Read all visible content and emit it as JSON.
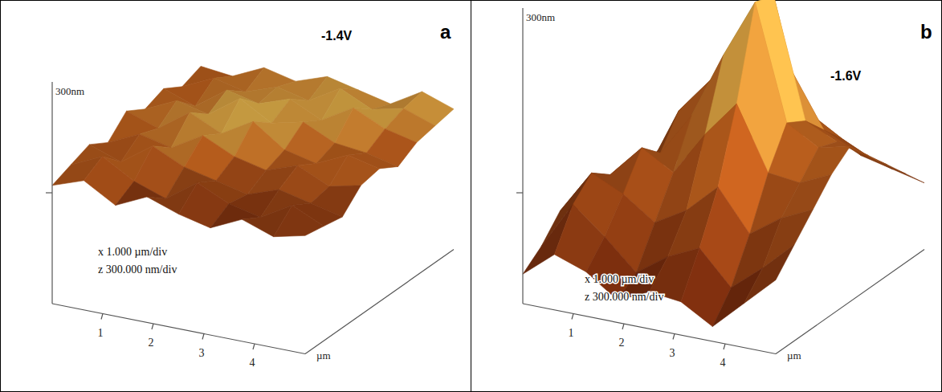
{
  "chart_data": [
    {
      "type": "surface",
      "panel": "a",
      "title": "-1.4V",
      "x": [
        0,
        0.625,
        1.25,
        1.875,
        2.5,
        3.125,
        3.75,
        4.375,
        5
      ],
      "y": [
        0,
        0.625,
        1.25,
        1.875,
        2.5,
        3.125,
        3.75,
        4.375,
        5
      ],
      "heights": [
        [
          320,
          350,
          300,
          340,
          310,
          290,
          330,
          300,
          320
        ],
        [
          340,
          380,
          330,
          300,
          360,
          320,
          300,
          350,
          310
        ],
        [
          360,
          330,
          390,
          350,
          330,
          310,
          340,
          320,
          300
        ],
        [
          330,
          370,
          350,
          400,
          360,
          340,
          370,
          330,
          350
        ],
        [
          380,
          350,
          410,
          370,
          420,
          360,
          340,
          380,
          360
        ],
        [
          350,
          390,
          370,
          430,
          380,
          400,
          360,
          350,
          330
        ],
        [
          370,
          340,
          400,
          380,
          410,
          370,
          420,
          380,
          360
        ],
        [
          340,
          380,
          360,
          390,
          370,
          420,
          380,
          400,
          370
        ],
        [
          360,
          350,
          390,
          370,
          400,
          380,
          360,
          410,
          380
        ]
      ],
      "xlim": [
        0,
        5
      ],
      "ylim": [
        0,
        5
      ],
      "zlim": [
        0,
        600
      ],
      "xticks": [
        1,
        2,
        3,
        4
      ],
      "zticks": [
        {
          "value": 300,
          "label": "300nm"
        }
      ],
      "x_label": "µm",
      "annotations": [
        "x 1.000 µm/div",
        "z 300.000 nm/div"
      ],
      "tick_labels": "x"
    },
    {
      "type": "surface",
      "panel": "b",
      "title": "-1.6V",
      "x": [
        0,
        0.625,
        1.25,
        1.875,
        2.5,
        3.125,
        3.75,
        4.375,
        5
      ],
      "y": [
        0,
        0.625,
        1.25,
        1.875,
        2.5,
        3.125,
        3.75,
        4.375,
        5
      ],
      "heights": [
        [
          80,
          150,
          120,
          60,
          100,
          90,
          40,
          120,
          200
        ],
        [
          120,
          250,
          180,
          100,
          160,
          200,
          110,
          180,
          260
        ],
        [
          180,
          300,
          260,
          200,
          250,
          330,
          220,
          280,
          320
        ],
        [
          150,
          260,
          350,
          300,
          420,
          520,
          350,
          340,
          380
        ],
        [
          120,
          220,
          300,
          420,
          600,
          760,
          450,
          400,
          420
        ],
        [
          100,
          200,
          380,
          480,
          560,
          740,
          420,
          380,
          360
        ],
        [
          140,
          240,
          300,
          360,
          420,
          500,
          360,
          320,
          300
        ],
        [
          120,
          180,
          240,
          300,
          320,
          350,
          300,
          260,
          240
        ],
        [
          100,
          150,
          200,
          220,
          240,
          260,
          220,
          200,
          180
        ]
      ],
      "xlim": [
        0,
        5
      ],
      "ylim": [
        0,
        5
      ],
      "zlim": [
        0,
        800
      ],
      "xticks": [
        1,
        2,
        3,
        4
      ],
      "zticks": [
        {
          "value": 300,
          "label": "300nm"
        }
      ],
      "x_label": "µm",
      "annotations": [
        "x 1.000 µm/div",
        "z 300.000 nm/div"
      ],
      "tick_labels": "x"
    }
  ]
}
